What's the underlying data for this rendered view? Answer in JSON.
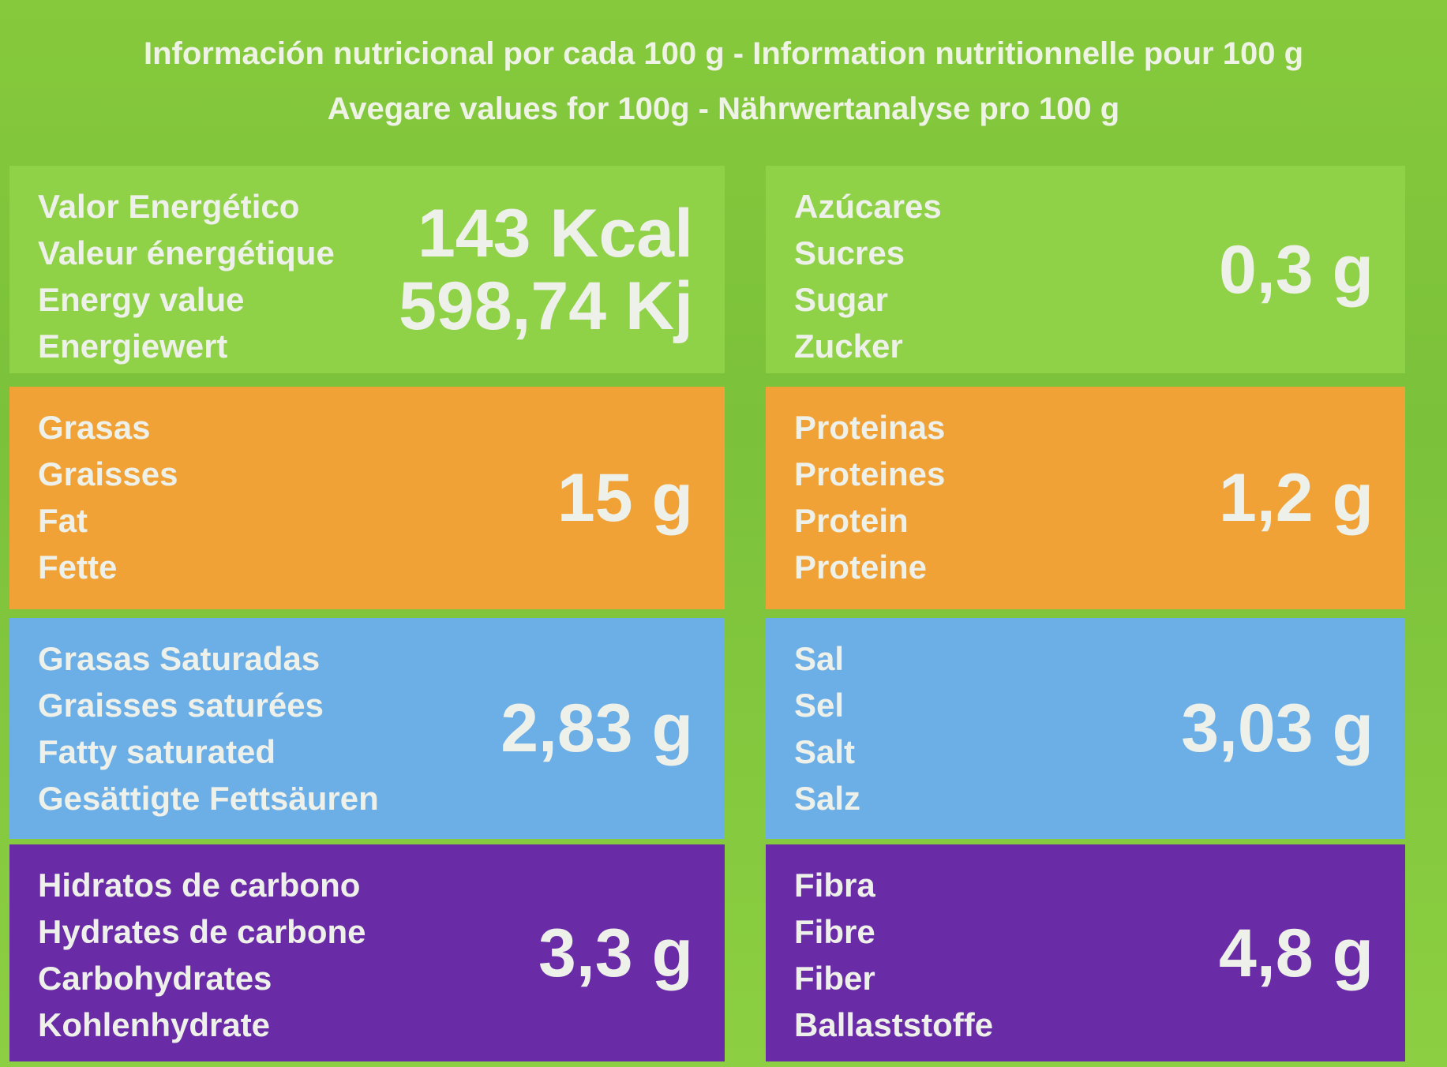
{
  "header": {
    "lines": [
      "Información nutricional por cada 100 g - Information nutritionnelle pour 100 g",
      "Avegare values for 100g - Nährwertanalyse pro 100 g"
    ]
  },
  "table": {
    "cells": [
      {
        "labels": [
          "Valor Energético",
          "Valeur énergétique",
          "Energy value",
          "Energiewert"
        ],
        "values": [
          "143 Kcal",
          "598,74 Kj"
        ]
      },
      {
        "labels": [
          "Azúcares",
          "Sucres",
          "Sugar",
          "Zucker"
        ],
        "values": [
          "0,3 g"
        ]
      },
      {
        "labels": [
          "Grasas",
          "Graisses",
          "Fat",
          "Fette"
        ],
        "values": [
          "15 g"
        ]
      },
      {
        "labels": [
          "Proteinas",
          "Proteines",
          "Protein",
          "Proteine"
        ],
        "values": [
          "1,2 g"
        ]
      },
      {
        "labels": [
          "Grasas Saturadas",
          "Graisses saturées",
          "Fatty  saturated",
          "Gesättigte Fettsäuren"
        ],
        "values": [
          "2,83 g"
        ]
      },
      {
        "labels": [
          "Sal",
          "Sel",
          "Salt",
          "Salz"
        ],
        "values": [
          "3,03 g"
        ]
      },
      {
        "labels": [
          "Hidratos de carbono",
          "Hydrates de carbone",
          "Carbohydrates",
          "Kohlenhydrate"
        ],
        "values": [
          "3,3 g"
        ]
      },
      {
        "labels": [
          "Fibra",
          "Fibre",
          "Fiber",
          "Ballaststoffe"
        ],
        "values": [
          "4,8 g"
        ]
      }
    ]
  }
}
